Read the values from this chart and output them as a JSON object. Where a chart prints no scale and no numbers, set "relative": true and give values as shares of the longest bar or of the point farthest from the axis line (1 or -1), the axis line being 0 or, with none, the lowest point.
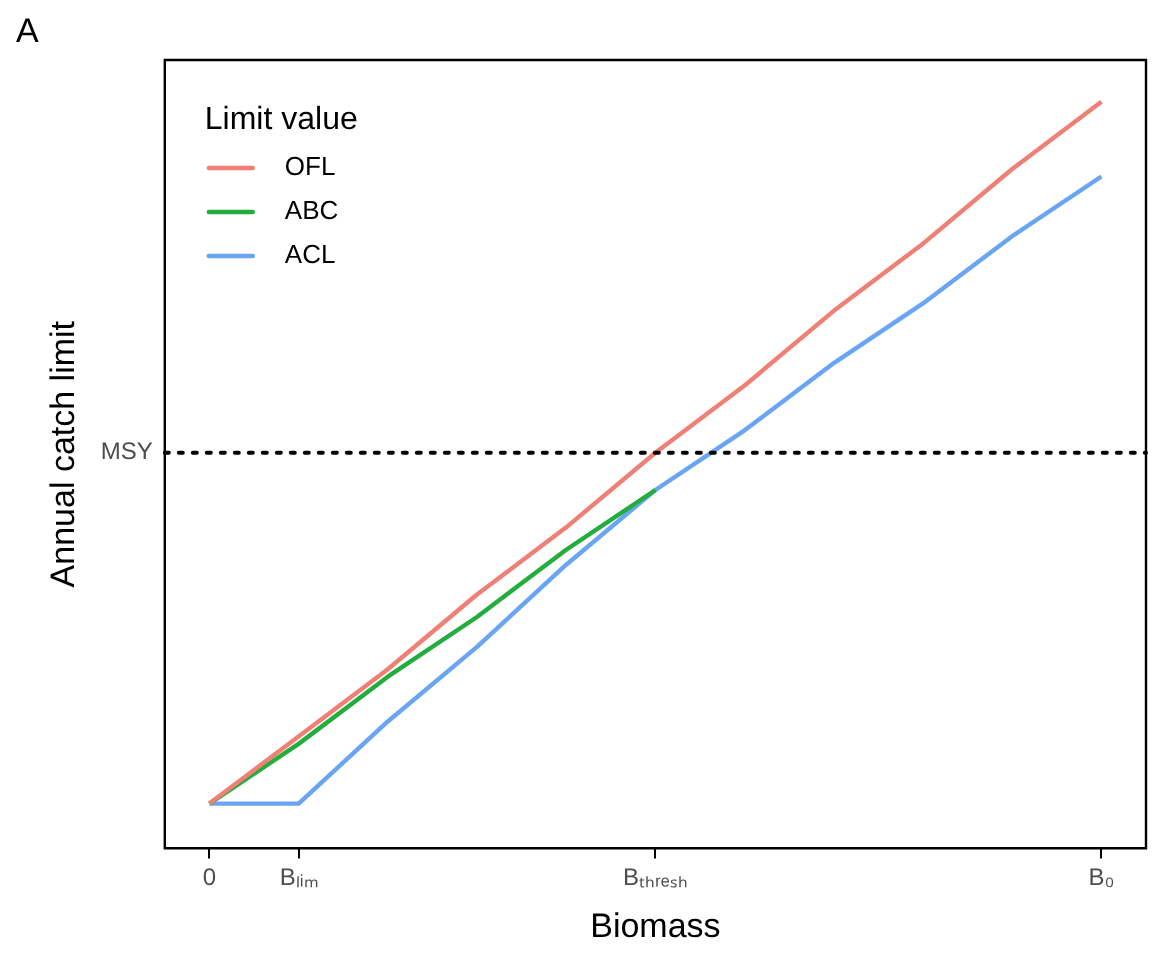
{
  "chart_data": {
    "type": "line",
    "title": "A",
    "xlabel": "Biomass",
    "ylabel": "Annual catch limit",
    "relative": true,
    "legend_title": "Limit value",
    "legend": "top left",
    "grid": false,
    "tick_labels": "x",
    "marker": "none",
    "line_style": "solid",
    "categories": [
      "0",
      "Bₗᵢₘ",
      null,
      null,
      null,
      "Bₜₕᵣₑₛₕ",
      null,
      null,
      null,
      null,
      "B₀"
    ],
    "series": [
      {
        "name": "OFL",
        "color": "#f07f76",
        "values": [
          0.06,
          0.15,
          0.24,
          0.34,
          0.43,
          0.53,
          0.62,
          0.72,
          0.81,
          0.91,
          1
        ]
      },
      {
        "name": "ABC",
        "color": "#22ad3c",
        "values": [
          0.06,
          0.14,
          0.23,
          0.31,
          0.4,
          0.48,
          null,
          null,
          null,
          null,
          null
        ]
      },
      {
        "name": "ACL",
        "color": "#6aa5f5",
        "values": [
          0.06,
          0.06,
          0.17,
          0.27,
          0.38,
          0.48,
          0.56,
          0.65,
          0.73,
          0.82,
          0.9
        ]
      }
    ],
    "ref_lines": [
      {
        "axis": "y",
        "value": 0.53,
        "label": "MSY",
        "color": "#000000",
        "line_style": "dotted"
      }
    ]
  }
}
